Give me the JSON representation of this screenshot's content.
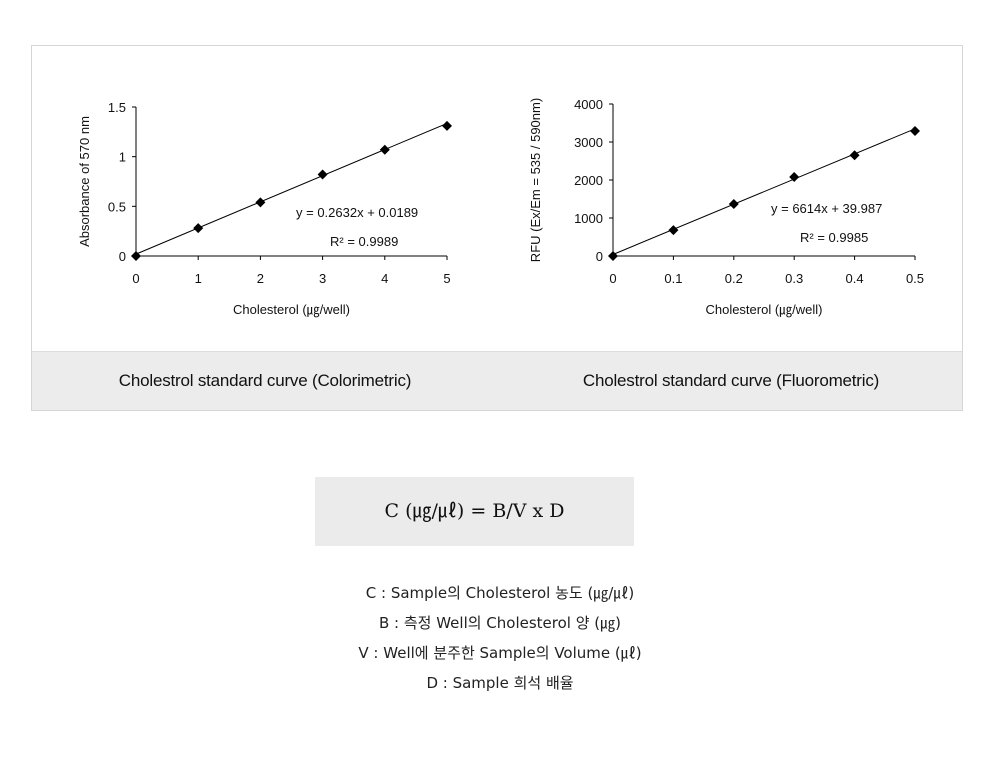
{
  "chart_data": [
    {
      "type": "scatter",
      "xlabel": "Cholesterol (㎍/well)",
      "ylabel": "Absorbance of 570 nm",
      "xlim": [
        0,
        5
      ],
      "ylim": [
        0,
        1.5
      ],
      "x_ticks": [
        "0",
        "1",
        "2",
        "3",
        "4",
        "5"
      ],
      "y_ticks": [
        "0",
        "0.5",
        "1",
        "1.5"
      ],
      "x": [
        0,
        1,
        2,
        3,
        4,
        5
      ],
      "y": [
        0,
        0.28,
        0.54,
        0.82,
        1.07,
        1.31
      ],
      "trendline": {
        "slope": 0.2632,
        "intercept": 0.0189
      },
      "equation": "y = 0.2632x + 0.0189",
      "r2": "R² = 0.9989",
      "grid": false,
      "legend": "none"
    },
    {
      "type": "scatter",
      "xlabel": "Cholesterol (㎍/well)",
      "ylabel": "RFU (Ex/Em = 535 / 590nm)",
      "xlim": [
        0,
        0.5
      ],
      "ylim": [
        0,
        4000
      ],
      "x_ticks": [
        "0",
        "0.1",
        "0.2",
        "0.3",
        "0.4",
        "0.5"
      ],
      "y_ticks": [
        "0",
        "1000",
        "2000",
        "3000",
        "4000"
      ],
      "x": [
        0,
        0.1,
        0.2,
        0.3,
        0.4,
        0.5
      ],
      "y": [
        0,
        680,
        1370,
        2080,
        2650,
        3290
      ],
      "trendline": {
        "slope": 6614,
        "intercept": 39.987
      },
      "equation": "y = 6614x + 39.987",
      "r2": "R² = 0.9985",
      "grid": false,
      "legend": "none"
    }
  ],
  "captions": {
    "left": "Cholestrol standard curve (Colorimetric)",
    "right": "Cholestrol standard curve (Fluorometric)"
  },
  "formula": "C (㎍/㎕) = B/V x D",
  "legend_lines": [
    "C : Sample의 Cholesterol 농도 (㎍/㎕)",
    "B : 측정 Well의 Cholesterol 양 (㎍)",
    "V : Well에 분주한 Sample의 Volume (㎕)",
    "D : Sample 희석 배율"
  ]
}
